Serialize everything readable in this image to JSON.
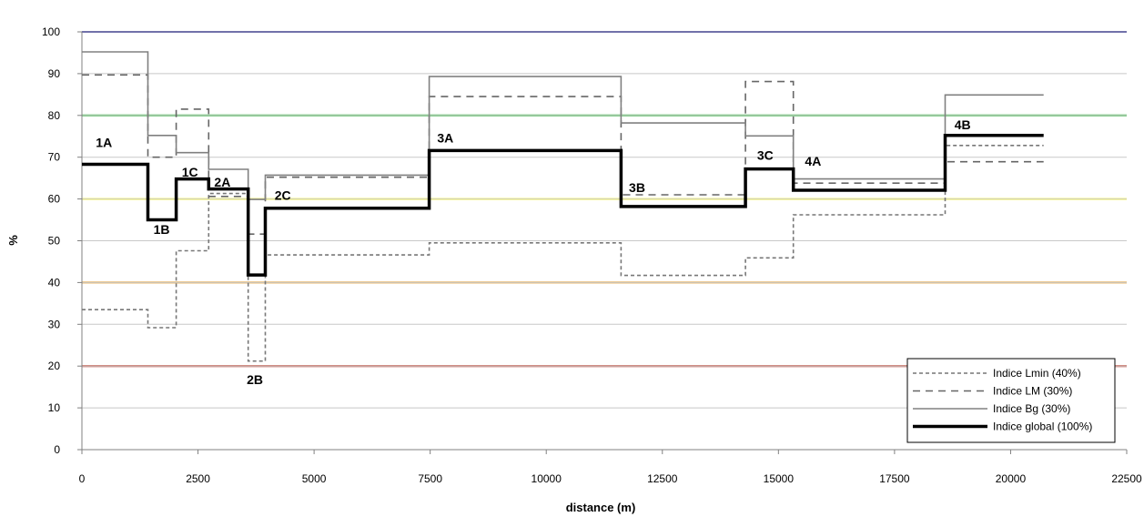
{
  "chart_data": {
    "type": "line",
    "xlabel": "distance (m)",
    "ylabel": "%",
    "xlim": [
      0,
      22500
    ],
    "ylim": [
      0,
      100
    ],
    "xticks": [
      0,
      2500,
      5000,
      7500,
      10000,
      12500,
      15000,
      17500,
      20000,
      22500
    ],
    "yticks": [
      0,
      10,
      20,
      30,
      40,
      50,
      60,
      70,
      80,
      90,
      100
    ],
    "grid": true,
    "legend_position": "bottom-right",
    "reference_lines": [
      {
        "y": 100,
        "color": "#1a1a8c"
      },
      {
        "y": 80,
        "color": "#2db83d"
      },
      {
        "y": 60,
        "color": "#ffff4d"
      },
      {
        "y": 40,
        "color": "#e8a23a"
      },
      {
        "y": 20,
        "color": "#c0392b"
      }
    ],
    "series": [
      {
        "name": "Indice Lmin (40%)",
        "style": "dotted",
        "color": "#777777",
        "x": [
          0,
          1420,
          1420,
          2030,
          2030,
          2730,
          2730,
          3580,
          3580,
          3950,
          3950,
          7480,
          7480,
          11610,
          11610,
          14290,
          14290,
          15320,
          15320,
          18590,
          18590,
          20710
        ],
        "y": [
          33.5,
          33.5,
          29.2,
          29.2,
          47.6,
          47.6,
          61.3,
          61.3,
          21.2,
          21.2,
          46.6,
          46.6,
          49.5,
          49.5,
          41.7,
          41.7,
          45.9,
          45.9,
          56.2,
          56.2,
          72.8,
          72.8
        ]
      },
      {
        "name": "Indice LM (30%)",
        "style": "dashed",
        "color": "#666666",
        "x": [
          0,
          1420,
          1420,
          2030,
          2030,
          2730,
          2730,
          3580,
          3580,
          3950,
          3950,
          7480,
          7480,
          11610,
          11610,
          14290,
          14290,
          15320,
          15320,
          18590,
          18590,
          20710
        ],
        "y": [
          89.7,
          89.7,
          70.0,
          70.0,
          81.5,
          81.5,
          60.6,
          60.6,
          51.6,
          51.6,
          65.2,
          65.2,
          84.5,
          84.5,
          61.0,
          61.0,
          88.1,
          88.1,
          63.8,
          63.8,
          68.9,
          68.9
        ]
      },
      {
        "name": "Indice Bg (30%)",
        "style": "solid",
        "color": "#808080",
        "x": [
          0,
          1420,
          1420,
          2030,
          2030,
          2730,
          2730,
          3580,
          3580,
          3950,
          3950,
          7480,
          7480,
          11610,
          11610,
          14290,
          14290,
          15320,
          15320,
          18590,
          18590,
          20710
        ],
        "y": [
          95.2,
          95.2,
          75.2,
          75.2,
          71.1,
          71.1,
          67.1,
          67.1,
          59.9,
          59.9,
          65.7,
          65.7,
          89.3,
          89.3,
          78.2,
          78.2,
          75.1,
          75.1,
          64.8,
          64.8,
          84.9,
          84.9
        ]
      },
      {
        "name": "Indice global (100%)",
        "style": "bold",
        "color": "#000000",
        "x": [
          0,
          1420,
          1420,
          2030,
          2030,
          2730,
          2730,
          3580,
          3580,
          3950,
          3950,
          7480,
          7480,
          11610,
          11610,
          14290,
          14290,
          15320,
          15320,
          18590,
          18590,
          20710
        ],
        "y": [
          68.3,
          68.3,
          55.0,
          55.0,
          64.8,
          64.8,
          62.4,
          62.4,
          41.8,
          41.8,
          57.8,
          57.8,
          71.6,
          71.6,
          58.2,
          58.2,
          67.2,
          67.2,
          62.1,
          62.1,
          75.2,
          75.2
        ]
      }
    ],
    "annotations": [
      {
        "text": "1A",
        "x": 300,
        "y": 73.5
      },
      {
        "text": "1B",
        "x": 1540,
        "y": 52.7
      },
      {
        "text": "1C",
        "x": 2150,
        "y": 66.5
      },
      {
        "text": "2A",
        "x": 2850,
        "y": 64.0
      },
      {
        "text": "2B",
        "x": 3550,
        "y": 16.8
      },
      {
        "text": "2C",
        "x": 4150,
        "y": 60.9
      },
      {
        "text": "3A",
        "x": 7650,
        "y": 74.6
      },
      {
        "text": "3B",
        "x": 11780,
        "y": 62.7
      },
      {
        "text": "3C",
        "x": 14540,
        "y": 70.5
      },
      {
        "text": "4A",
        "x": 15570,
        "y": 69.1
      },
      {
        "text": "4B",
        "x": 18790,
        "y": 77.8
      }
    ]
  }
}
